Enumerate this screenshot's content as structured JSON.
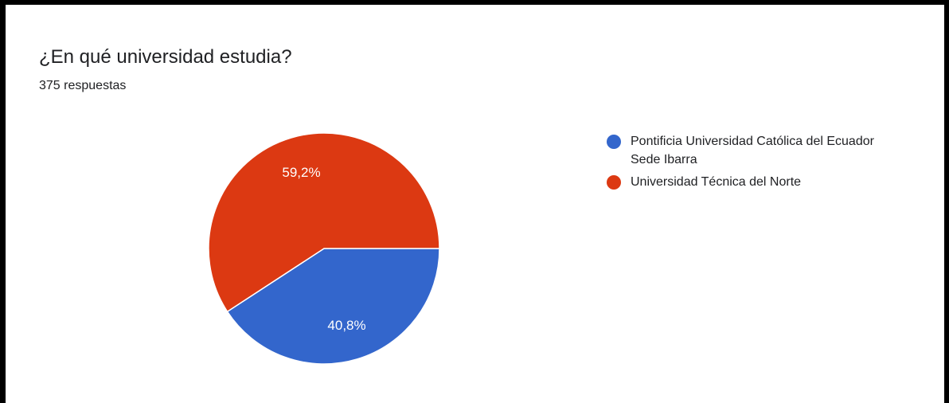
{
  "chart_data": {
    "type": "pie",
    "title": "¿En qué universidad estudia?",
    "subtitle": "375 respuestas",
    "legend_position": "right",
    "series": [
      {
        "name": "Pontificia Universidad Católica del Ecuador Sede Ibarra",
        "value": 40.8,
        "label": "40,8%",
        "color": "#3366cc"
      },
      {
        "name": "Universidad Técnica del Norte",
        "value": 59.2,
        "label": "59,2%",
        "color": "#dc3912"
      }
    ]
  }
}
